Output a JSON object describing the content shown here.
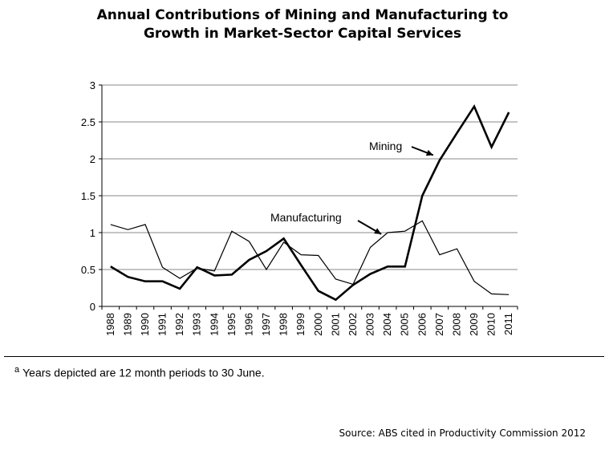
{
  "chart_data": {
    "type": "line",
    "title": [
      "Annual Contributions of Mining and Manufacturing to",
      "Growth in Market-Sector Capital Services"
    ],
    "xlabel": "",
    "ylabel": "",
    "x": [
      "1988",
      "1989",
      "1990",
      "1991",
      "1992",
      "1993",
      "1994",
      "1995",
      "1996",
      "1997",
      "1998",
      "1999",
      "2000",
      "2001",
      "2002",
      "2003",
      "2004",
      "2005",
      "2006",
      "2007",
      "2008",
      "2009",
      "2010",
      "2011"
    ],
    "ylim": [
      0,
      3
    ],
    "yticks": [
      "0",
      "0.5",
      "1",
      "1.5",
      "2",
      "2.5",
      "3"
    ],
    "grid": "horizontal",
    "series": [
      {
        "name": "Mining",
        "color": "#000000",
        "style": "thick",
        "values": [
          0.54,
          0.4,
          0.34,
          0.34,
          0.24,
          0.53,
          0.42,
          0.43,
          0.63,
          0.75,
          0.92,
          0.56,
          0.21,
          0.09,
          0.29,
          0.44,
          0.54,
          0.54,
          1.5,
          1.98,
          2.35,
          2.71,
          2.16,
          2.63
        ]
      },
      {
        "name": "Manufacturing",
        "color": "#000000",
        "style": "thin",
        "values": [
          1.11,
          1.04,
          1.11,
          0.53,
          0.38,
          0.52,
          0.48,
          1.02,
          0.88,
          0.5,
          0.87,
          0.7,
          0.69,
          0.37,
          0.3,
          0.8,
          1.0,
          1.02,
          1.16,
          0.7,
          0.78,
          0.34,
          0.17,
          0.16
        ]
      }
    ],
    "annotations": [
      {
        "label": "Mining",
        "points_to": {
          "x": "2007",
          "y": 2.05
        }
      },
      {
        "label": "Manufacturing",
        "points_to": {
          "x": "2004",
          "y": 0.98
        }
      }
    ]
  },
  "footnote": {
    "marker": "a",
    "text": "Years depicted are 12 month periods to 30 June."
  },
  "source": "Source: ABS cited in Productivity Commission 2012"
}
